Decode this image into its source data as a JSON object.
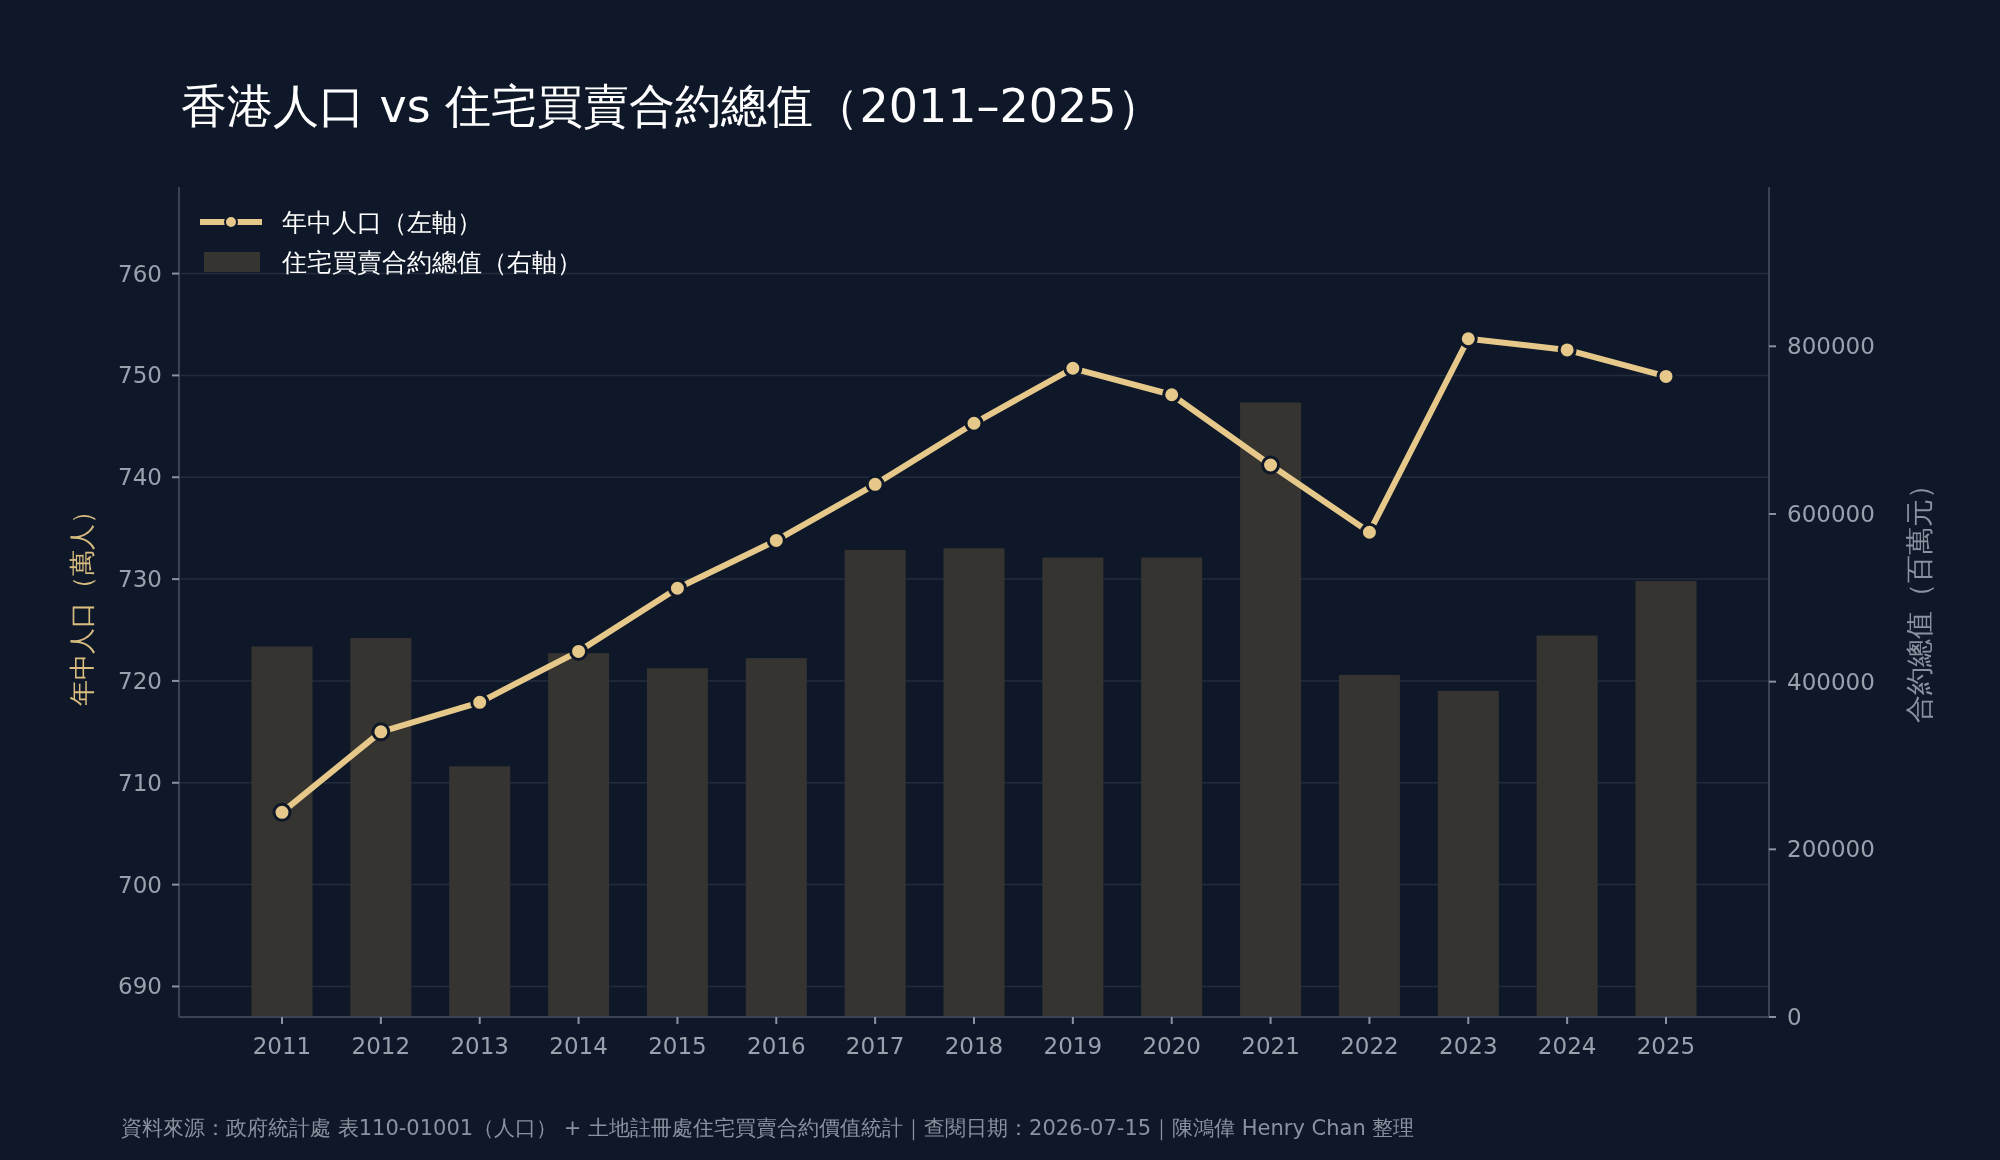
{
  "chart_data": {
    "type": "bar",
    "title": "香港人口 vs 住宅買賣合約總值（2011–2025）",
    "categories": [
      "2011",
      "2012",
      "2013",
      "2014",
      "2015",
      "2016",
      "2017",
      "2018",
      "2019",
      "2020",
      "2021",
      "2022",
      "2023",
      "2024",
      "2025"
    ],
    "series": [
      {
        "name": "年中人口（左軸）",
        "type": "line",
        "axis": "y",
        "color": "#e6c98a",
        "values": [
          707.1,
          715.0,
          717.9,
          722.9,
          729.1,
          733.8,
          739.3,
          745.3,
          750.7,
          748.1,
          741.2,
          734.6,
          753.6,
          752.5,
          749.9
        ]
      },
      {
        "name": "住宅買賣合約總值（右軸）",
        "axis": "y2",
        "color": "#363431",
        "values": [
          442000,
          452000,
          299000,
          434000,
          416000,
          428000,
          557000,
          559000,
          548000,
          548000,
          733000,
          408000,
          389000,
          455000,
          520000
        ]
      }
    ],
    "ylabel": "年中人口（萬人）",
    "y2label": "合約總值（百萬元）",
    "ylim": [
      687,
      768.5
    ],
    "yticks": [
      690,
      700,
      710,
      720,
      730,
      740,
      750,
      760
    ],
    "y2lim": [
      0,
      990000
    ],
    "y2ticks": [
      0,
      200000,
      400000,
      600000,
      800000
    ],
    "grid": "y",
    "legend": "top left",
    "marker": "circle",
    "annotations": [
      "資料來源：政府統計處 表110-01001（人口） + 土地註冊處住宅買賣合約價值統計｜查閱日期：2026-07-15｜陳鴻偉 Henry Chan 整理"
    ]
  }
}
